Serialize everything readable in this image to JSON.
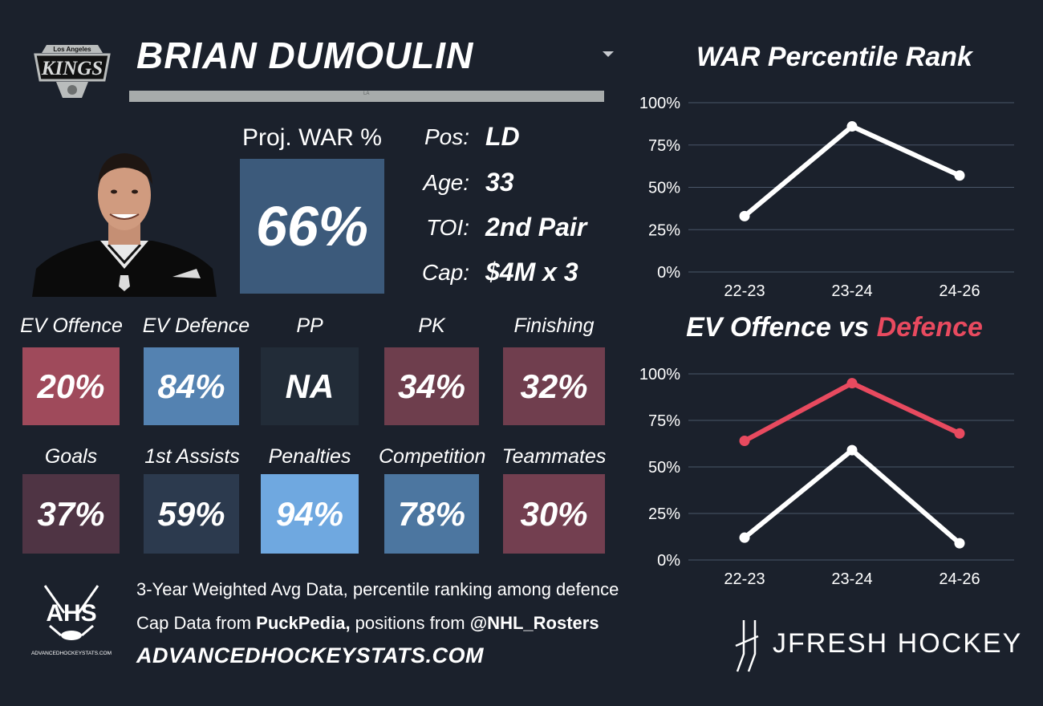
{
  "header": {
    "player_name": "BRIAN DUMOULIN",
    "team_logo_line1": "Los Angeles",
    "team_logo_line2": "KINGS",
    "bar_text": "LA"
  },
  "projection": {
    "label": "Proj. WAR %",
    "value": "66%"
  },
  "info": [
    {
      "key": "Pos:",
      "value": "LD"
    },
    {
      "key": "Age:",
      "value": "33"
    },
    {
      "key": "TOI:",
      "value": "2nd Pair"
    },
    {
      "key": "Cap:",
      "value": "$4M x 3"
    }
  ],
  "stats": [
    {
      "label": "EV Offence",
      "value": "20%",
      "color": "#9f4a5b"
    },
    {
      "label": "EV Defence",
      "value": "84%",
      "color": "#5482b1"
    },
    {
      "label": "PP",
      "value": "NA",
      "color": "#222c38"
    },
    {
      "label": "PK",
      "value": "34%",
      "color": "#6e3e4d"
    },
    {
      "label": "Finishing",
      "value": "32%",
      "color": "#703e4e"
    },
    {
      "label": "Goals",
      "value": "37%",
      "color": "#4f3444"
    },
    {
      "label": "1st Assists",
      "value": "59%",
      "color": "#2c3a4e"
    },
    {
      "label": "Penalties",
      "value": "94%",
      "color": "#6fa8e0"
    },
    {
      "label": "Competition",
      "value": "78%",
      "color": "#4c76a0"
    },
    {
      "label": "Teammates",
      "value": "30%",
      "color": "#733f50"
    }
  ],
  "footer": {
    "ahs_logo_text": "AHS",
    "ahs_logo_sub": "ADVANCEDHOCKEYSTATS.COM",
    "line1": "3-Year Weighted Avg Data, percentile ranking among defence",
    "line2_pre": "Cap Data from ",
    "line2_source": "PuckPedia,",
    "line2_mid": " positions from ",
    "line2_handle": "@NHL_Rosters",
    "url": "ADVANCEDHOCKEYSTATS.COM",
    "brand": "JFRESH HOCKEY"
  },
  "colors": {
    "background": "#1b212c",
    "defence_line": "#e84a5f",
    "offence_line": "#ffffff",
    "gridline": "#4a5668"
  },
  "chart_data": [
    {
      "type": "line",
      "title": "WAR Percentile Rank",
      "x": [
        "22-23",
        "23-24",
        "24-26"
      ],
      "yticks": [
        "100%",
        "75%",
        "50%",
        "25%",
        "0%"
      ],
      "ylim": [
        0,
        100
      ],
      "grid": true,
      "series": [
        {
          "color": "#ffffff",
          "values": [
            33,
            86,
            57
          ]
        }
      ]
    },
    {
      "type": "line",
      "title_part1": "EV Offence vs ",
      "title_part2": "Defence",
      "x": [
        "22-23",
        "23-24",
        "24-26"
      ],
      "yticks": [
        "100%",
        "75%",
        "50%",
        "25%",
        "0%"
      ],
      "ylim": [
        0,
        100
      ],
      "grid": true,
      "series": [
        {
          "color": "#e84a5f",
          "values": [
            64,
            95,
            68
          ]
        },
        {
          "color": "#ffffff",
          "values": [
            12,
            59,
            9
          ]
        }
      ]
    }
  ]
}
